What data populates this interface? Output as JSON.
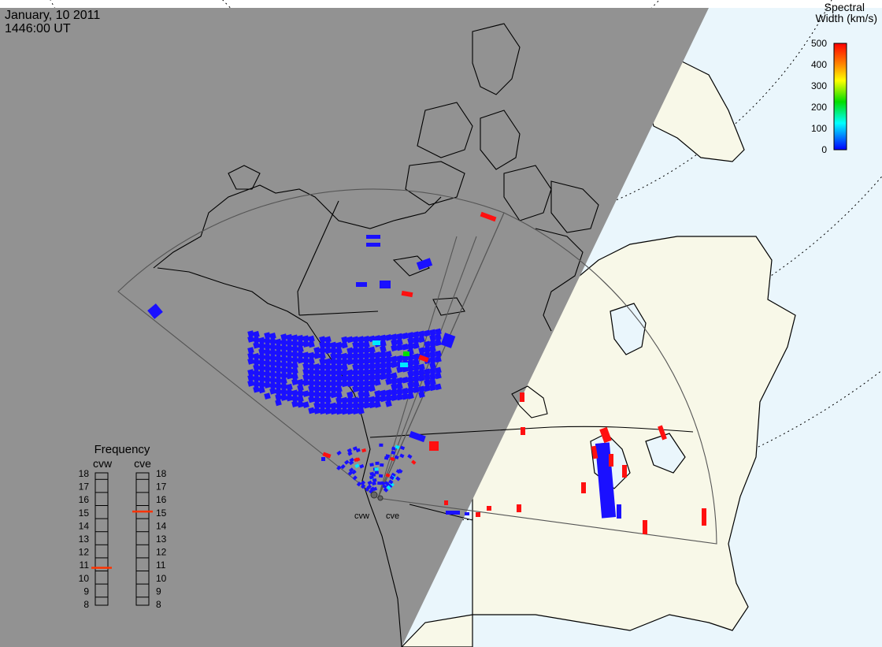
{
  "header": {
    "date": "January, 10 2011",
    "time": "1446:00 UT"
  },
  "colorbar": {
    "title_line1": "Spectral",
    "title_line2": "Width (km/s)",
    "ticks": [
      "500",
      "400",
      "300",
      "200",
      "100",
      "0"
    ],
    "colors": [
      "#ff0000",
      "#ffa500",
      "#ffff00",
      "#00d000",
      "#00ffff",
      "#0000ff"
    ]
  },
  "frequency_panel": {
    "title": "Frequency",
    "left_label": "cvw",
    "right_label": "cve",
    "scale": [
      "18",
      "17",
      "16",
      "15",
      "14",
      "13",
      "12",
      "11",
      "10",
      "9",
      "8"
    ],
    "cvw_value": 10.8,
    "cve_value": 15.1,
    "marker_color": "#ff3300"
  },
  "radars": {
    "west_label": "cvw",
    "east_label": "cve"
  },
  "colors": {
    "night": "#929292",
    "land_day": "#f8f8e8",
    "ocean_day": "#eaf6fc",
    "echo_low": "#1a10ff",
    "echo_high": "#ff1010",
    "echo_mid": "#00e8ff"
  }
}
